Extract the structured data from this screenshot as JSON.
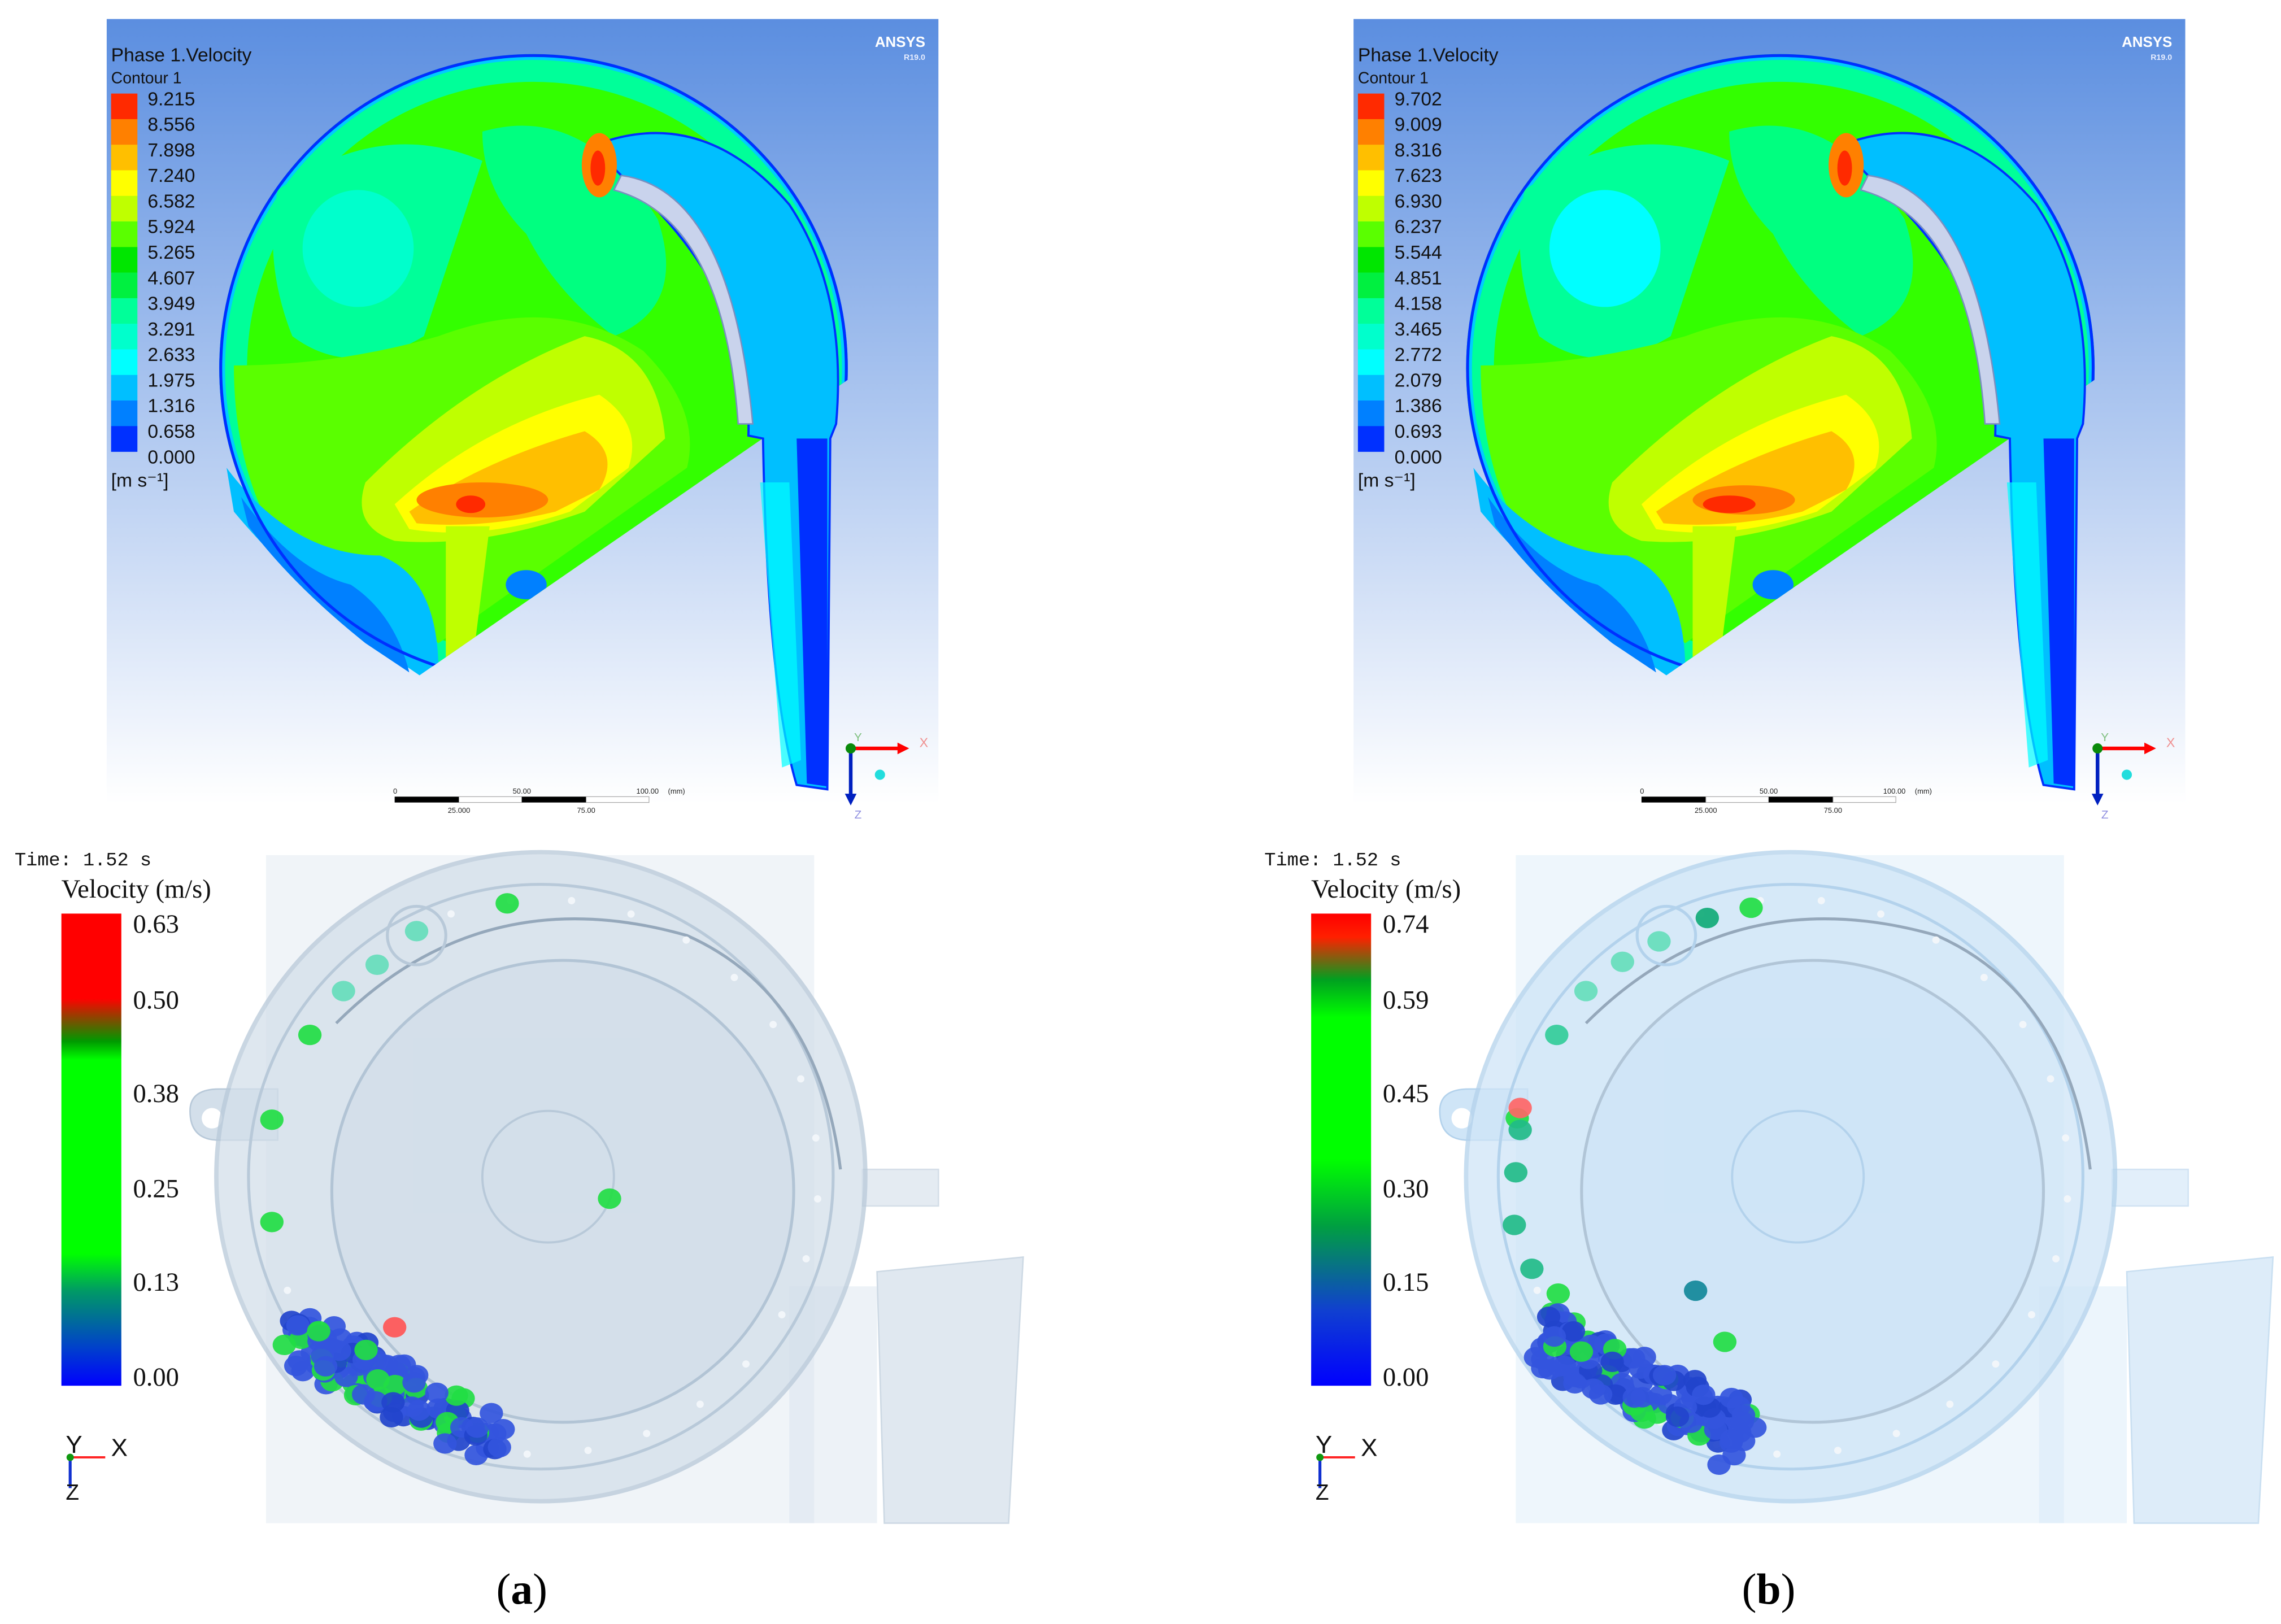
{
  "panels": [
    {
      "label": "a",
      "contour": {
        "title": "Phase 1.Velocity",
        "subtitle": "Contour 1",
        "ticks": [
          "9.215",
          "8.556",
          "7.898",
          "7.240",
          "6.582",
          "5.924",
          "5.265",
          "4.607",
          "3.949",
          "3.291",
          "2.633",
          "1.975",
          "1.316",
          "0.658",
          "0.000"
        ],
        "unit": "[m s⁻¹]",
        "logo": "ANSYS",
        "logo_version": "R19.0",
        "scale_bar": {
          "top": [
            "0",
            "50.00",
            "100.00"
          ],
          "bottom": [
            "25.000",
            "75.00"
          ],
          "unit": "(mm)"
        },
        "axes": {
          "x": "X",
          "y": "Y",
          "z": "Z"
        }
      },
      "dem": {
        "time": "Time: 1.52 s",
        "title": "Velocity (m/s)",
        "ticks": [
          "0.63",
          "0.50",
          "0.38",
          "0.25",
          "0.13",
          "0.00"
        ],
        "axes": {
          "x": "X",
          "y": "Y",
          "z": "Z"
        }
      }
    },
    {
      "label": "b",
      "contour": {
        "title": "Phase 1.Velocity",
        "subtitle": "Contour 1",
        "ticks": [
          "9.702",
          "9.009",
          "8.316",
          "7.623",
          "6.930",
          "6.237",
          "5.544",
          "4.851",
          "4.158",
          "3.465",
          "2.772",
          "2.079",
          "1.386",
          "0.693",
          "0.000"
        ],
        "unit": "[m s⁻¹]",
        "logo": "ANSYS",
        "logo_version": "R19.0",
        "scale_bar": {
          "top": [
            "0",
            "50.00",
            "100.00"
          ],
          "bottom": [
            "25.000",
            "75.00"
          ],
          "unit": "(mm)"
        },
        "axes": {
          "x": "X",
          "y": "Y",
          "z": "Z"
        }
      },
      "dem": {
        "time": "Time: 1.52 s",
        "title": "Velocity (m/s)",
        "ticks": [
          "0.74",
          "0.59",
          "0.45",
          "0.30",
          "0.15",
          "0.00"
        ],
        "axes": {
          "x": "X",
          "y": "Y",
          "z": "Z"
        }
      }
    }
  ],
  "colors": {
    "contour_bins": [
      "#ff2a00",
      "#ff8000",
      "#ffbf00",
      "#ffff00",
      "#bfff00",
      "#5aff00",
      "#00e600",
      "#00f040",
      "#00ff99",
      "#00ffcc",
      "#00ffff",
      "#00bfff",
      "#0080ff",
      "#0030ff"
    ],
    "contour_background_top": "#5b8ee0",
    "contour_background_bottom": "#ffffff"
  }
}
